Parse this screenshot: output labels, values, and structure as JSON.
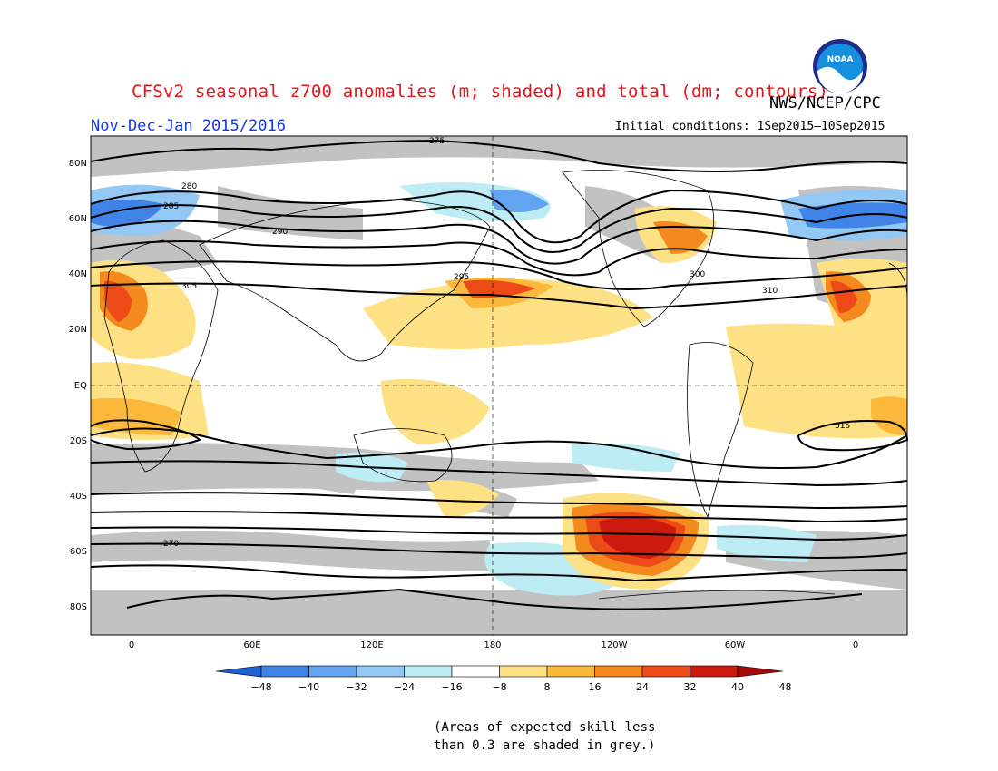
{
  "title": "CFSv2 seasonal z700 anomalies (m; shaded) and total (dm; contours)",
  "agency": "NWS/NCEP/CPC",
  "season": "Nov-Dec-Jan 2015/2016",
  "initial_conditions": "Initial conditions: 1Sep2015–10Sep2015",
  "logo_text": "NOAA",
  "lat_labels": [
    "80N",
    "60N",
    "40N",
    "20N",
    "EQ",
    "20S",
    "40S",
    "60S",
    "80S"
  ],
  "lon_labels": [
    "0",
    "60E",
    "120E",
    "180",
    "120W",
    "60W",
    "0"
  ],
  "colorbar": {
    "ticks": [
      "−48",
      "−40",
      "−32",
      "−24",
      "−16",
      "−8",
      "8",
      "16",
      "24",
      "32",
      "40",
      "48"
    ],
    "colors": [
      "#1f62d6",
      "#3f84e6",
      "#62a4f0",
      "#93c8f5",
      "#bdecf4",
      "#ffffff",
      "#fde184",
      "#fbb83a",
      "#f48a1e",
      "#ec4a17",
      "#cc1b0e",
      "#a50a0a"
    ]
  },
  "note_line1": "(Areas of expected skill less",
  "note_line2": "than 0.3 are shaded in grey.)",
  "contour_labels": [
    {
      "text": "275"
    },
    {
      "text": "280"
    },
    {
      "text": "285"
    },
    {
      "text": "290"
    },
    {
      "text": "295"
    },
    {
      "text": "300"
    },
    {
      "text": "305"
    },
    {
      "text": "310"
    },
    {
      "text": "315"
    },
    {
      "text": "270"
    }
  ]
}
